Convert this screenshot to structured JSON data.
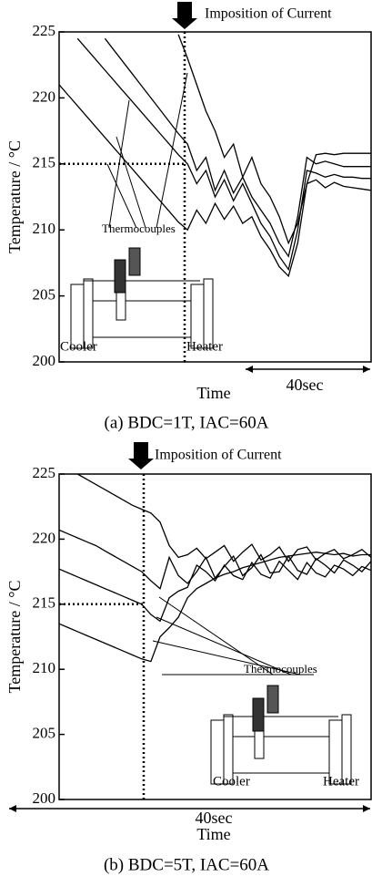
{
  "chart_data": [
    {
      "type": "line",
      "annotation": "Imposition of Current",
      "ylabel": "Temperature / °C",
      "xlabel": "Time",
      "time_span": "40sec",
      "caption": "(a) BDC=1T,  IAC=60A",
      "inset_label": "Thermocouples",
      "left_label": "Cooler",
      "right_label": "Heater",
      "ylim": [
        200,
        225
      ],
      "yticks": [
        200,
        205,
        210,
        215,
        220,
        225
      ],
      "reference_y": 215,
      "series": [
        {
          "color": "#000000",
          "values": [
            221,
            220.2,
            219.4,
            218.6,
            217.8,
            217,
            216.2,
            215.4,
            214.6,
            213.8,
            213,
            212.2,
            211.4,
            210.6,
            210,
            211.5,
            210.5,
            212,
            210.8,
            211.8,
            210.5,
            211,
            209.5,
            208.5,
            207.2,
            206.5,
            209,
            213.5,
            213.8,
            213.2,
            213.6,
            213.3,
            213.2,
            213.1,
            213
          ]
        },
        {
          "color": "#000000",
          "values": [
            null,
            null,
            224.5,
            223.7,
            222.9,
            222.1,
            221.3,
            220.5,
            219.7,
            218.9,
            218.1,
            217.3,
            216.5,
            215.7,
            215,
            213.5,
            214.5,
            212.5,
            213.8,
            212.2,
            213.5,
            212,
            210.5,
            209.5,
            208,
            207,
            210,
            214.5,
            214.3,
            214,
            214.2,
            214,
            214,
            213.9,
            213.9
          ]
        },
        {
          "color": "#000000",
          "values": [
            null,
            null,
            null,
            null,
            null,
            224.5,
            223.6,
            222.7,
            221.8,
            220.9,
            220,
            219.1,
            218.2,
            217.3,
            216.5,
            214.5,
            215.5,
            213,
            214.5,
            212.8,
            214,
            212.5,
            211.5,
            210.5,
            209,
            208,
            211,
            215.5,
            215,
            215.2,
            215,
            214.8,
            214.8,
            214.8,
            214.8
          ]
        },
        {
          "color": "#000000",
          "values": [
            null,
            null,
            null,
            null,
            null,
            null,
            null,
            null,
            null,
            null,
            null,
            null,
            null,
            224.8,
            223,
            221,
            219,
            217.5,
            215.5,
            216.5,
            214,
            215.5,
            213.5,
            212.5,
            211,
            209,
            210.5,
            213.5,
            215.7,
            215.8,
            215.7,
            215.8,
            215.8,
            215.8,
            215.8
          ]
        }
      ]
    },
    {
      "type": "line",
      "annotation": "Imposition of Current",
      "ylabel": "Temperature / °C",
      "xlabel": "Time",
      "time_span": "40sec",
      "caption": "(b) BDC=5T,  IAC=60A",
      "inset_label": "Thermocouples",
      "left_label": "Cooler",
      "right_label": "Heater",
      "ylim": [
        200,
        225
      ],
      "yticks": [
        200,
        205,
        210,
        215,
        220,
        225
      ],
      "reference_y": 215,
      "series": [
        {
          "color": "#000000",
          "values": [
            null,
            null,
            225,
            224.6,
            224.2,
            223.8,
            223.4,
            223,
            222.6,
            222.3,
            222,
            221.3,
            219.5,
            218.6,
            218.8,
            219.3,
            218.5,
            219,
            219.5,
            218.3,
            219,
            219.6,
            218.4,
            218.8,
            219.4,
            218.3,
            219.2,
            219.4,
            218.4,
            218.9,
            219.2,
            218.5,
            218.8,
            219.2,
            218.6
          ]
        },
        {
          "color": "#000000",
          "values": [
            220.7,
            220.4,
            220.1,
            219.8,
            219.5,
            219.1,
            218.7,
            218.3,
            217.9,
            217.5,
            216.8,
            216.2,
            218.6,
            217.2,
            216.6,
            217.5,
            218.6,
            217,
            217.9,
            218.7,
            217.2,
            217.8,
            218.8,
            217.4,
            217.5,
            218.7,
            217.6,
            217.3,
            218.5,
            218,
            217.4,
            218.4,
            218,
            217.5,
            218.3
          ]
        },
        {
          "color": "#000000",
          "values": [
            217.7,
            217.4,
            217.1,
            216.8,
            216.5,
            216.2,
            215.9,
            215.6,
            215.3,
            215,
            214.2,
            213.7,
            215.5,
            216,
            216.3,
            218,
            217.5,
            216.8,
            218,
            217.2,
            216.9,
            218.2,
            217.3,
            217,
            218.3,
            217.6,
            216.9,
            218.2,
            217.4,
            217.1,
            218,
            217.7,
            217.2,
            217.9,
            217.6
          ]
        },
        {
          "color": "#000000",
          "values": [
            213.5,
            213.2,
            212.9,
            212.6,
            212.3,
            212,
            211.7,
            211.4,
            211.1,
            210.8,
            210.6,
            212.5,
            213.2,
            214,
            215.5,
            216.2,
            216.6,
            217,
            217.3,
            217.5,
            217.8,
            218,
            218.2,
            218.4,
            218.6,
            218.7,
            218.8,
            218.9,
            219,
            218.9,
            218.8,
            218.9,
            218.7,
            218.8,
            218.8
          ]
        }
      ]
    }
  ]
}
